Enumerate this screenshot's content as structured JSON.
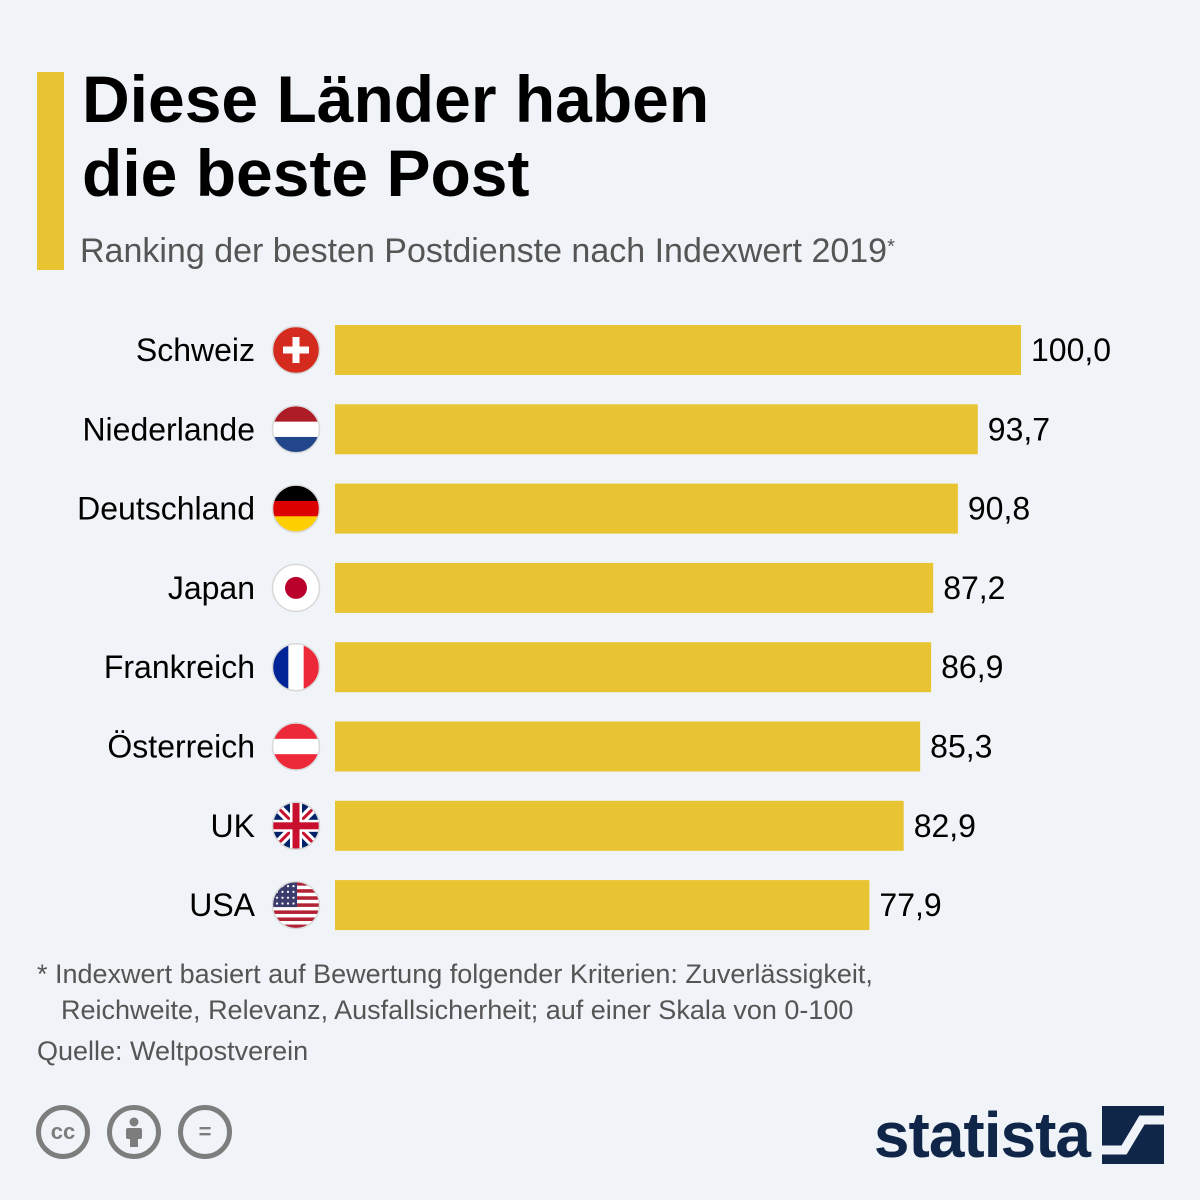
{
  "title_lines": [
    "Diese Länder haben",
    "die beste Post"
  ],
  "subtitle": "Ranking der besten Postdienste nach Indexwert 2019",
  "subtitle_marker": "*",
  "chart_data": {
    "type": "bar",
    "orientation": "horizontal",
    "categories": [
      "Schweiz",
      "Niederlande",
      "Deutschland",
      "Japan",
      "Frankreich",
      "Österreich",
      "UK",
      "USA"
    ],
    "values": [
      100.0,
      93.7,
      90.8,
      87.2,
      86.9,
      85.3,
      82.9,
      77.9
    ],
    "value_labels": [
      "100,0",
      "93,7",
      "90,8",
      "87,2",
      "86,9",
      "85,3",
      "82,9",
      "77,9"
    ],
    "flags": [
      "swiss-flag-icon",
      "netherlands-flag-icon",
      "germany-flag-icon",
      "japan-flag-icon",
      "france-flag-icon",
      "austria-flag-icon",
      "uk-flag-icon",
      "usa-flag-icon"
    ],
    "xlim": [
      0,
      100
    ],
    "bar_color": "#e9c432",
    "grid": false,
    "legend": "none"
  },
  "footnote": {
    "line1": "* Indexwert basiert auf Bewertung folgender Kriterien: Zuverlässigkeit,",
    "line2": "Reichweite, Relevanz, Ausfallsicherheit; auf einer Skala von 0-100"
  },
  "source": "Quelle: Weltpostverein",
  "license_icons": [
    "cc-icon",
    "attribution-icon",
    "no-derivatives-icon"
  ],
  "license_labels": [
    "cc",
    "="
  ],
  "brand": "statista",
  "brand_icon": "statista-logo-icon",
  "colors": {
    "accent": "#e9c432",
    "brand": "#0f2648",
    "background": "#f0f4f8"
  }
}
